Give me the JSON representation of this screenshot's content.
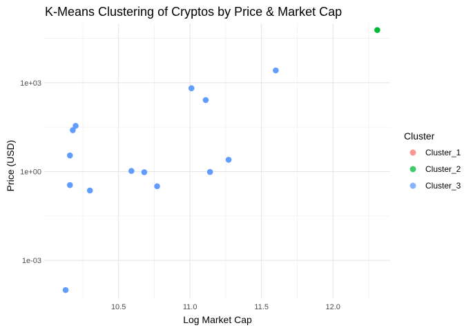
{
  "chart_data": {
    "type": "scatter",
    "title": "K-Means Clustering of Cryptos by Price & Market Cap",
    "xlabel": "Log Market Cap",
    "ylabel": "Price (USD)",
    "y_scale": "log10",
    "xlim": [
      9.98,
      12.4
    ],
    "ylim_log10": [
      -4.3,
      5.0
    ],
    "x_ticks": [
      10.5,
      11.0,
      11.5,
      12.0
    ],
    "x_tick_labels": [
      "10.5",
      "11.0",
      "11.5",
      "12.0"
    ],
    "x_minor_ticks": [
      10.25,
      10.75,
      11.25,
      11.75,
      12.25
    ],
    "y_ticks_log10": [
      -3,
      0,
      3
    ],
    "y_tick_labels": [
      "1e-03",
      "1e+00",
      "1e+03"
    ],
    "y_minor_ticks_log10": [
      -1.5,
      1.5,
      4.5
    ],
    "grid": true,
    "legend": {
      "title": "Cluster",
      "position": "right",
      "entries": [
        {
          "name": "Cluster_1",
          "color": "#F8766D"
        },
        {
          "name": "Cluster_2",
          "color": "#00BA38"
        },
        {
          "name": "Cluster_3",
          "color": "#619CFF"
        }
      ]
    },
    "series": [
      {
        "name": "Cluster_1",
        "color": "#F8766D",
        "points": []
      },
      {
        "name": "Cluster_2",
        "color": "#00BA38",
        "points": [
          {
            "x": 12.31,
            "y": 60000
          }
        ]
      },
      {
        "name": "Cluster_3",
        "color": "#619CFF",
        "points": [
          {
            "x": 10.13,
            "y": 0.0001
          },
          {
            "x": 10.16,
            "y": 0.35
          },
          {
            "x": 10.16,
            "y": 3.5
          },
          {
            "x": 10.18,
            "y": 25
          },
          {
            "x": 10.2,
            "y": 35
          },
          {
            "x": 10.3,
            "y": 0.23
          },
          {
            "x": 10.59,
            "y": 1.05
          },
          {
            "x": 10.68,
            "y": 0.95
          },
          {
            "x": 10.77,
            "y": 0.32
          },
          {
            "x": 11.01,
            "y": 650
          },
          {
            "x": 11.11,
            "y": 260
          },
          {
            "x": 11.14,
            "y": 0.97
          },
          {
            "x": 11.27,
            "y": 2.5
          },
          {
            "x": 11.6,
            "y": 2600
          }
        ]
      }
    ]
  }
}
